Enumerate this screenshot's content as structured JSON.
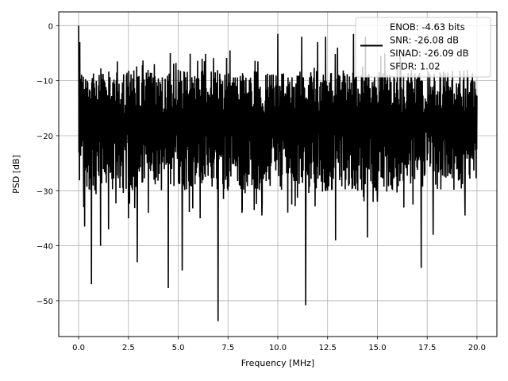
{
  "chart_data": {
    "type": "line",
    "xlabel": "Frequency [MHz]",
    "ylabel": "PSD [dB]",
    "xlim": [
      -1.0,
      21.0
    ],
    "ylim": [
      -56.5,
      2.5
    ],
    "xticks": [
      0.0,
      2.5,
      5.0,
      7.5,
      10.0,
      12.5,
      15.0,
      17.5,
      20.0
    ],
    "xtick_labels": [
      "0.0",
      "2.5",
      "5.0",
      "7.5",
      "10.0",
      "12.5",
      "15.0",
      "17.5",
      "20.0"
    ],
    "yticks": [
      0,
      -10,
      -20,
      -30,
      -40,
      -50
    ],
    "ytick_labels": [
      "0",
      "−10",
      "−20",
      "−30",
      "−40",
      "−50"
    ],
    "grid": true,
    "legend_position": "top-right",
    "legend_lines": [
      "ENOB: -4.63 bits",
      "SNR: -26.08 dB",
      "SINAD: -26.09 dB",
      "SFDR: 1.02"
    ],
    "series": [
      {
        "color": "#000000",
        "x_range": [
          0.0,
          20.0
        ],
        "typical_band_db": [
          -30,
          -8
        ],
        "dense_noise": true,
        "peaks": [
          {
            "x": 0.0,
            "y": 0.0
          },
          {
            "x": 0.05,
            "y": -3.0
          },
          {
            "x": 3.8,
            "y": -7.0
          },
          {
            "x": 4.6,
            "y": -5.0
          },
          {
            "x": 6.2,
            "y": -6.0
          },
          {
            "x": 7.6,
            "y": -4.5
          },
          {
            "x": 10.0,
            "y": -1.5
          },
          {
            "x": 11.2,
            "y": -2.0
          },
          {
            "x": 12.0,
            "y": -3.0
          },
          {
            "x": 12.4,
            "y": -2.0
          },
          {
            "x": 13.0,
            "y": -4.0
          },
          {
            "x": 13.8,
            "y": -1.5
          },
          {
            "x": 14.4,
            "y": -2.0
          }
        ],
        "troughs": [
          {
            "x": 0.25,
            "y": -33.0
          },
          {
            "x": 0.3,
            "y": -36.5
          },
          {
            "x": 0.65,
            "y": -47.0
          },
          {
            "x": 1.1,
            "y": -40.0
          },
          {
            "x": 1.5,
            "y": -37.0
          },
          {
            "x": 2.5,
            "y": -35.0
          },
          {
            "x": 2.95,
            "y": -43.0
          },
          {
            "x": 3.5,
            "y": -34.0
          },
          {
            "x": 4.5,
            "y": -47.7
          },
          {
            "x": 5.2,
            "y": -44.5
          },
          {
            "x": 6.1,
            "y": -35.0
          },
          {
            "x": 7.0,
            "y": -53.7
          },
          {
            "x": 8.2,
            "y": -34.0
          },
          {
            "x": 9.2,
            "y": -34.5
          },
          {
            "x": 10.7,
            "y": -32.5
          },
          {
            "x": 11.4,
            "y": -50.8
          },
          {
            "x": 12.9,
            "y": -39.0
          },
          {
            "x": 14.5,
            "y": -38.5
          },
          {
            "x": 15.0,
            "y": -32.0
          },
          {
            "x": 17.2,
            "y": -44.0
          },
          {
            "x": 17.8,
            "y": -38.0
          },
          {
            "x": 19.4,
            "y": -34.5
          }
        ]
      }
    ]
  }
}
